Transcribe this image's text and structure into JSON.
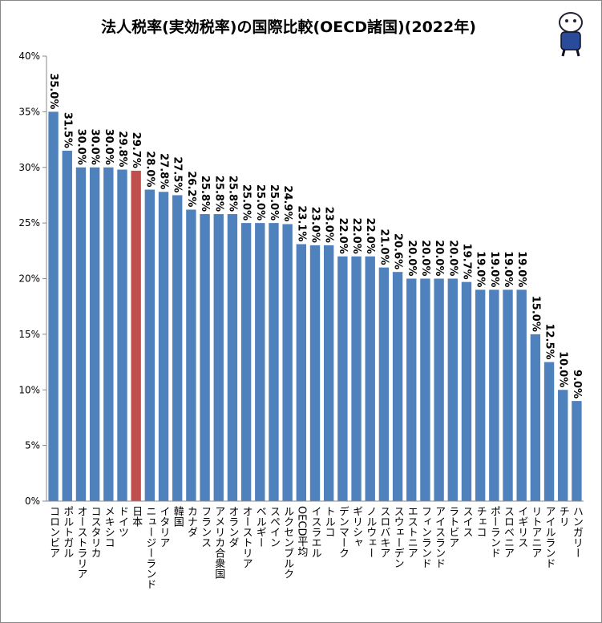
{
  "chart_data": {
    "type": "bar",
    "title": "法人税率(実効税率)の国際比較(OECD諸国)(2022年)",
    "categories": [
      "コロンビア",
      "ポルトガル",
      "オーストラリア",
      "コスタリカ",
      "メキシコ",
      "ドイツ",
      "日本",
      "ニュージーランド",
      "イタリア",
      "韓国",
      "カナダ",
      "フランス",
      "アメリカ合衆国",
      "オランダ",
      "オーストリア",
      "ベルギー",
      "スペイン",
      "ルクセンブルク",
      "OECD平均",
      "イスラエル",
      "トルコ",
      "デンマーク",
      "ギリシャ",
      "ノルウェー",
      "スロバキア",
      "スウェーデン",
      "エストニア",
      "フィンランド",
      "アイスランド",
      "ラトビア",
      "スイス",
      "チェコ",
      "ポーランド",
      "スロベニア",
      "イギリス",
      "リトアニア",
      "アイルランド",
      "チリ",
      "ハンガリー"
    ],
    "values": [
      35.0,
      31.5,
      30.0,
      30.0,
      30.0,
      29.8,
      29.7,
      28.0,
      27.8,
      27.5,
      26.2,
      25.8,
      25.8,
      25.8,
      25.0,
      25.0,
      25.0,
      24.9,
      23.1,
      23.0,
      23.0,
      22.0,
      22.0,
      22.0,
      21.0,
      20.6,
      20.0,
      20.0,
      20.0,
      20.0,
      19.7,
      19.0,
      19.0,
      19.0,
      19.0,
      15.0,
      12.5,
      10.0,
      9.0
    ],
    "value_labels": [
      "35.0%",
      "31.5%",
      "30.0%",
      "30.0%",
      "30.0%",
      "29.8%",
      "29.7%",
      "28.0%",
      "27.8%",
      "27.5%",
      "26.2%",
      "25.8%",
      "25.8%",
      "25.8%",
      "25.0%",
      "25.0%",
      "25.0%",
      "24.9%",
      "23.1%",
      "23.0%",
      "23.0%",
      "22.0%",
      "22.0%",
      "22.0%",
      "21.0%",
      "20.6%",
      "20.0%",
      "20.0%",
      "20.0%",
      "20.0%",
      "19.7%",
      "19.0%",
      "19.0%",
      "19.0%",
      "19.0%",
      "15.0%",
      "12.5%",
      "10.0%",
      "9.0%"
    ],
    "colors": [
      "#4f81bd",
      "#4f81bd",
      "#4f81bd",
      "#4f81bd",
      "#4f81bd",
      "#4f81bd",
      "#c0504d",
      "#4f81bd",
      "#4f81bd",
      "#4f81bd",
      "#4f81bd",
      "#4f81bd",
      "#4f81bd",
      "#4f81bd",
      "#4f81bd",
      "#4f81bd",
      "#4f81bd",
      "#4f81bd",
      "#4f81bd",
      "#4f81bd",
      "#4f81bd",
      "#4f81bd",
      "#4f81bd",
      "#4f81bd",
      "#4f81bd",
      "#4f81bd",
      "#4f81bd",
      "#4f81bd",
      "#4f81bd",
      "#4f81bd",
      "#4f81bd",
      "#4f81bd",
      "#4f81bd",
      "#4f81bd",
      "#4f81bd",
      "#4f81bd",
      "#4f81bd",
      "#4f81bd",
      "#4f81bd"
    ],
    "ylim": [
      0,
      40
    ],
    "yticks": [
      {
        "value": 0,
        "label": "0%"
      },
      {
        "value": 5,
        "label": "5%"
      },
      {
        "value": 10,
        "label": "10%"
      },
      {
        "value": 15,
        "label": "15%"
      },
      {
        "value": 20,
        "label": "20%"
      },
      {
        "value": 25,
        "label": "25%"
      },
      {
        "value": 30,
        "label": "30%"
      },
      {
        "value": 35,
        "label": "35%"
      },
      {
        "value": 40,
        "label": "40%"
      }
    ],
    "grid": false
  }
}
